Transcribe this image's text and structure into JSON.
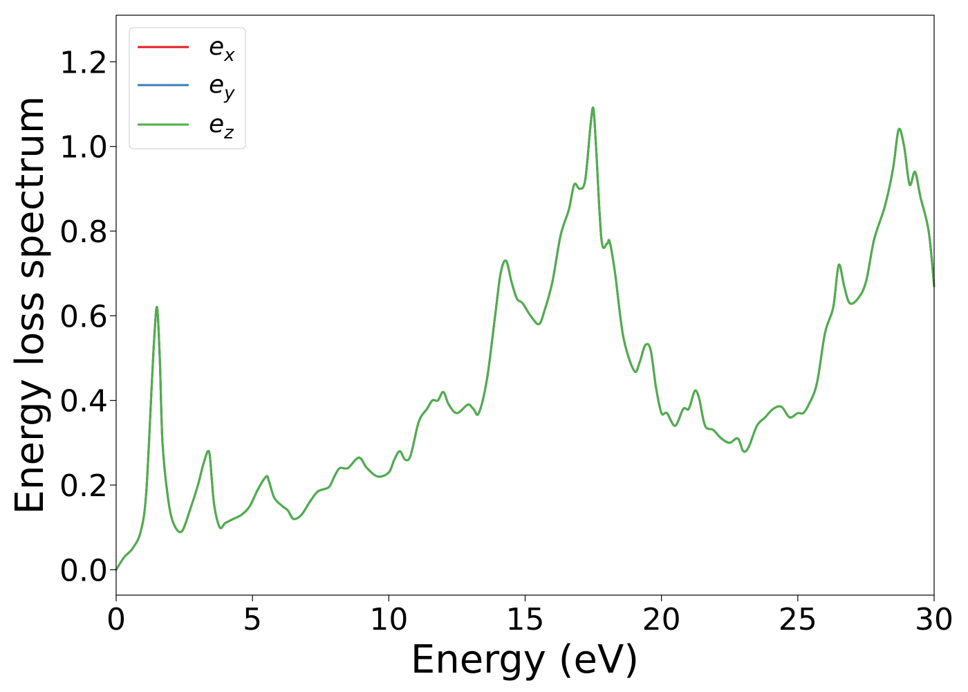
{
  "chart_data": {
    "type": "line",
    "xlabel": "Energy (eV)",
    "ylabel": "Energy loss spectrum",
    "xlim": [
      0,
      30
    ],
    "ylim": [
      -0.06,
      1.31
    ],
    "x_ticks": [
      "0",
      "5",
      "10",
      "15",
      "20",
      "25",
      "30"
    ],
    "x_tick_values": [
      0,
      5,
      10,
      15,
      20,
      25,
      30
    ],
    "y_ticks": [
      "0.0",
      "0.2",
      "0.4",
      "0.6",
      "0.8",
      "1.0",
      "1.2"
    ],
    "y_tick_values": [
      0,
      0.2,
      0.4,
      0.6,
      0.8,
      1.0,
      1.2
    ],
    "grid": false,
    "legend_position": "top-left",
    "series": [
      {
        "name_base": "e",
        "name_sub": "x",
        "color": "#e41a1c"
      },
      {
        "name_base": "e",
        "name_sub": "y",
        "color": "#377eb8"
      },
      {
        "name_base": "e",
        "name_sub": "z",
        "color": "#4daf4a"
      }
    ],
    "x": [
      0.0,
      0.3,
      0.6,
      0.9,
      1.1,
      1.3,
      1.4,
      1.5,
      1.6,
      1.7,
      1.9,
      2.1,
      2.4,
      2.7,
      3.0,
      3.2,
      3.4,
      3.5,
      3.6,
      3.8,
      4.0,
      4.3,
      4.6,
      4.9,
      5.2,
      5.5,
      5.6,
      5.8,
      6.1,
      6.3,
      6.5,
      6.8,
      7.1,
      7.4,
      7.8,
      8.0,
      8.2,
      8.5,
      8.9,
      9.2,
      9.6,
      10.0,
      10.2,
      10.4,
      10.6,
      10.8,
      11.1,
      11.4,
      11.6,
      11.8,
      12.0,
      12.2,
      12.5,
      12.9,
      13.1,
      13.3,
      13.6,
      13.9,
      14.1,
      14.3,
      14.5,
      14.7,
      14.9,
      15.2,
      15.5,
      15.7,
      16.0,
      16.3,
      16.6,
      16.8,
      17.0,
      17.2,
      17.4,
      17.5,
      17.6,
      17.8,
      18.0,
      18.1,
      18.3,
      18.6,
      19.0,
      19.2,
      19.4,
      19.6,
      19.8,
      20.0,
      20.2,
      20.5,
      20.8,
      21.0,
      21.2,
      21.3,
      21.4,
      21.6,
      21.9,
      22.2,
      22.5,
      22.8,
      23.0,
      23.2,
      23.5,
      23.8,
      24.1,
      24.4,
      24.7,
      25.0,
      25.2,
      25.4,
      25.7,
      26.0,
      26.3,
      26.5,
      26.7,
      26.9,
      27.2,
      27.5,
      27.8,
      28.2,
      28.5,
      28.7,
      28.9,
      29.1,
      29.3,
      29.5,
      29.8,
      30.0
    ],
    "values": [
      0.0,
      0.03,
      0.05,
      0.09,
      0.18,
      0.43,
      0.55,
      0.62,
      0.5,
      0.3,
      0.17,
      0.11,
      0.09,
      0.14,
      0.2,
      0.25,
      0.28,
      0.22,
      0.15,
      0.1,
      0.11,
      0.12,
      0.13,
      0.15,
      0.19,
      0.22,
      0.21,
      0.17,
      0.15,
      0.14,
      0.12,
      0.13,
      0.16,
      0.185,
      0.195,
      0.22,
      0.24,
      0.24,
      0.265,
      0.24,
      0.22,
      0.23,
      0.26,
      0.28,
      0.26,
      0.27,
      0.35,
      0.38,
      0.4,
      0.4,
      0.42,
      0.39,
      0.37,
      0.39,
      0.38,
      0.37,
      0.45,
      0.6,
      0.7,
      0.73,
      0.68,
      0.64,
      0.63,
      0.6,
      0.58,
      0.61,
      0.68,
      0.79,
      0.85,
      0.91,
      0.9,
      0.92,
      1.05,
      1.09,
      1.0,
      0.78,
      0.77,
      0.775,
      0.7,
      0.55,
      0.47,
      0.49,
      0.53,
      0.52,
      0.43,
      0.37,
      0.37,
      0.34,
      0.38,
      0.38,
      0.42,
      0.42,
      0.4,
      0.34,
      0.33,
      0.31,
      0.3,
      0.31,
      0.28,
      0.29,
      0.34,
      0.36,
      0.38,
      0.385,
      0.36,
      0.37,
      0.37,
      0.39,
      0.44,
      0.56,
      0.62,
      0.72,
      0.67,
      0.63,
      0.64,
      0.68,
      0.78,
      0.86,
      0.95,
      1.04,
      1.0,
      0.91,
      0.94,
      0.88,
      0.8,
      0.67
    ]
  }
}
